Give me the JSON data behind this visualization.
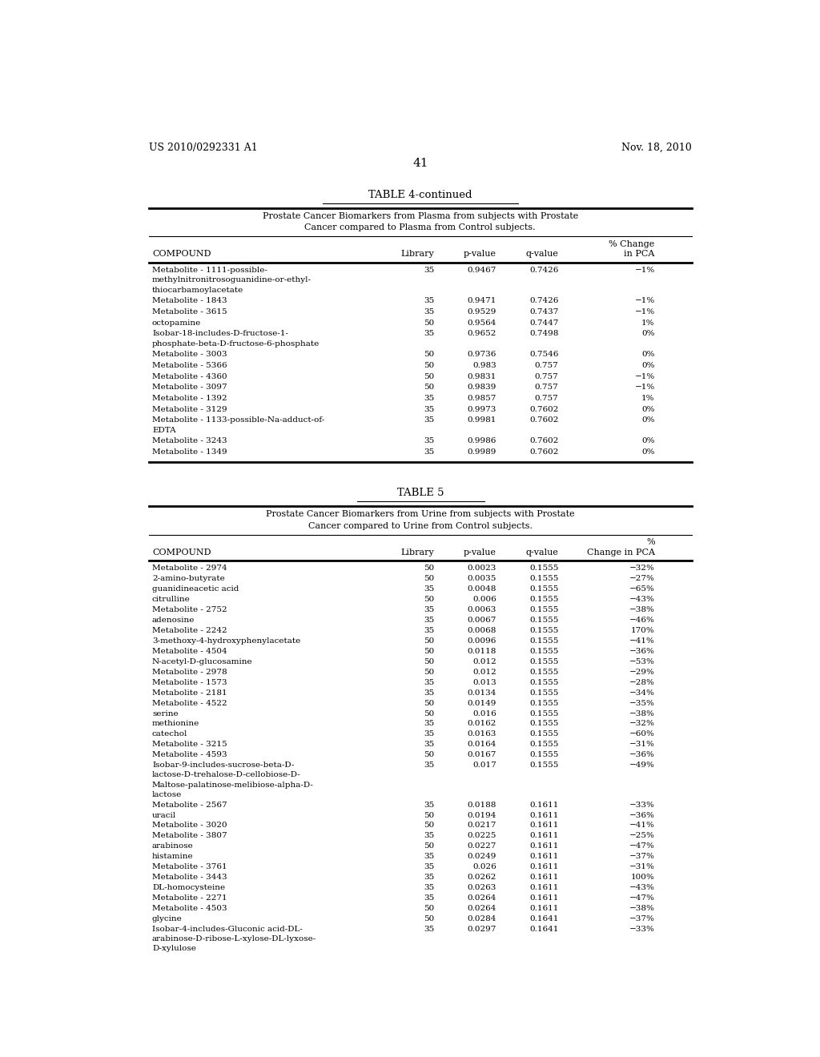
{
  "header_left": "US 2010/0292331 A1",
  "header_right": "Nov. 18, 2010",
  "page_number": "41",
  "table4_title": "TABLE 4-continued",
  "table4_subtitle1": "Prostate Cancer Biomarkers from Plasma from subjects with Prostate",
  "table4_subtitle2": "Cancer compared to Plasma from Control subjects.",
  "table4_rows": [
    [
      "Metabolite - 1111-possible-\nmethylnitronitrosoguanidine-or-ethyl-\nthiocarbamoylacetate",
      "35",
      "0.9467",
      "0.7426",
      "−1%"
    ],
    [
      "Metabolite - 1843",
      "35",
      "0.9471",
      "0.7426",
      "−1%"
    ],
    [
      "Metabolite - 3615",
      "35",
      "0.9529",
      "0.7437",
      "−1%"
    ],
    [
      "octopamine",
      "50",
      "0.9564",
      "0.7447",
      "1%"
    ],
    [
      "Isobar-18-includes-D-fructose-1-\nphosphate-beta-D-fructose-6-phosphate",
      "35",
      "0.9652",
      "0.7498",
      "0%"
    ],
    [
      "Metabolite - 3003",
      "50",
      "0.9736",
      "0.7546",
      "0%"
    ],
    [
      "Metabolite - 5366",
      "50",
      "0.983",
      "0.757",
      "0%"
    ],
    [
      "Metabolite - 4360",
      "50",
      "0.9831",
      "0.757",
      "−1%"
    ],
    [
      "Metabolite - 3097",
      "50",
      "0.9839",
      "0.757",
      "−1%"
    ],
    [
      "Metabolite - 1392",
      "35",
      "0.9857",
      "0.757",
      "1%"
    ],
    [
      "Metabolite - 3129",
      "35",
      "0.9973",
      "0.7602",
      "0%"
    ],
    [
      "Metabolite - 1133-possible-Na-adduct-of-\nEDTA",
      "35",
      "0.9981",
      "0.7602",
      "0%"
    ],
    [
      "Metabolite - 3243",
      "35",
      "0.9986",
      "0.7602",
      "0%"
    ],
    [
      "Metabolite - 1349",
      "35",
      "0.9989",
      "0.7602",
      "0%"
    ]
  ],
  "table5_title": "TABLE 5",
  "table5_subtitle1": "Prostate Cancer Biomarkers from Urine from subjects with Prostate",
  "table5_subtitle2": "Cancer compared to Urine from Control subjects.",
  "table5_rows": [
    [
      "Metabolite - 2974",
      "50",
      "0.0023",
      "0.1555",
      "−32%"
    ],
    [
      "2-amino-butyrate",
      "50",
      "0.0035",
      "0.1555",
      "−27%"
    ],
    [
      "guanidineacetic acid",
      "35",
      "0.0048",
      "0.1555",
      "−65%"
    ],
    [
      "citrulline",
      "50",
      "0.006",
      "0.1555",
      "−43%"
    ],
    [
      "Metabolite - 2752",
      "35",
      "0.0063",
      "0.1555",
      "−38%"
    ],
    [
      "adenosine",
      "35",
      "0.0067",
      "0.1555",
      "−46%"
    ],
    [
      "Metabolite - 2242",
      "35",
      "0.0068",
      "0.1555",
      "170%"
    ],
    [
      "3-methoxy-4-hydroxyphenylacetate",
      "50",
      "0.0096",
      "0.1555",
      "−41%"
    ],
    [
      "Metabolite - 4504",
      "50",
      "0.0118",
      "0.1555",
      "−36%"
    ],
    [
      "N-acetyl-D-glucosamine",
      "50",
      "0.012",
      "0.1555",
      "−53%"
    ],
    [
      "Metabolite - 2978",
      "50",
      "0.012",
      "0.1555",
      "−29%"
    ],
    [
      "Metabolite - 1573",
      "35",
      "0.013",
      "0.1555",
      "−28%"
    ],
    [
      "Metabolite - 2181",
      "35",
      "0.0134",
      "0.1555",
      "−34%"
    ],
    [
      "Metabolite - 4522",
      "50",
      "0.0149",
      "0.1555",
      "−35%"
    ],
    [
      "serine",
      "50",
      "0.016",
      "0.1555",
      "−38%"
    ],
    [
      "methionine",
      "35",
      "0.0162",
      "0.1555",
      "−32%"
    ],
    [
      "catechol",
      "35",
      "0.0163",
      "0.1555",
      "−60%"
    ],
    [
      "Metabolite - 3215",
      "35",
      "0.0164",
      "0.1555",
      "−31%"
    ],
    [
      "Metabolite - 4593",
      "50",
      "0.0167",
      "0.1555",
      "−36%"
    ],
    [
      "Isobar-9-includes-sucrose-beta-D-\nlactose-D-trehalose-D-cellobiose-D-\nMaltose-palatinose-melibiose-alpha-D-\nlactose",
      "35",
      "0.017",
      "0.1555",
      "−49%"
    ],
    [
      "Metabolite - 2567",
      "35",
      "0.0188",
      "0.1611",
      "−33%"
    ],
    [
      "uracil",
      "50",
      "0.0194",
      "0.1611",
      "−36%"
    ],
    [
      "Metabolite - 3020",
      "50",
      "0.0217",
      "0.1611",
      "−41%"
    ],
    [
      "Metabolite - 3807",
      "35",
      "0.0225",
      "0.1611",
      "−25%"
    ],
    [
      "arabinose",
      "50",
      "0.0227",
      "0.1611",
      "−47%"
    ],
    [
      "histamine",
      "35",
      "0.0249",
      "0.1611",
      "−37%"
    ],
    [
      "Metabolite - 3761",
      "35",
      "0.026",
      "0.1611",
      "−31%"
    ],
    [
      "Metabolite - 3443",
      "35",
      "0.0262",
      "0.1611",
      "100%"
    ],
    [
      "DL-homocysteine",
      "35",
      "0.0263",
      "0.1611",
      "−43%"
    ],
    [
      "Metabolite - 2271",
      "35",
      "0.0264",
      "0.1611",
      "−47%"
    ],
    [
      "Metabolite - 4503",
      "50",
      "0.0264",
      "0.1611",
      "−38%"
    ],
    [
      "glycine",
      "50",
      "0.0284",
      "0.1641",
      "−37%"
    ],
    [
      "Isobar-4-includes-Gluconic acid-DL-\narabinose-D-ribose-L-xylose-DL-lyxose-\nD-xylulose",
      "35",
      "0.0297",
      "0.1641",
      "−33%"
    ]
  ]
}
